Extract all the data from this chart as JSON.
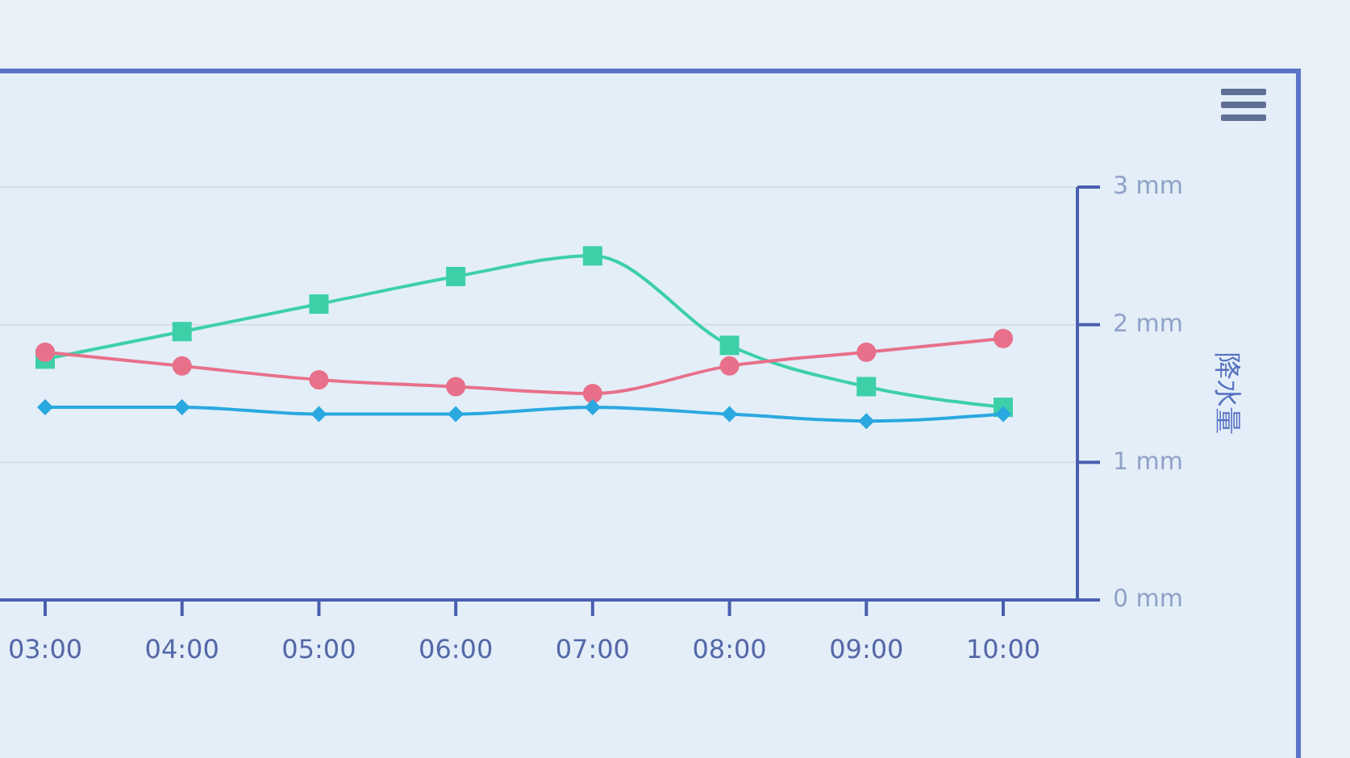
{
  "chart_data": {
    "type": "line",
    "categories": [
      "03:00",
      "04:00",
      "05:00",
      "06:00",
      "07:00",
      "08:00",
      "09:00",
      "10:00"
    ],
    "ylabel": "降水量",
    "ylim": [
      0,
      3
    ],
    "yticks": [
      {
        "value": 0,
        "label": "0 mm"
      },
      {
        "value": 1,
        "label": "1 mm"
      },
      {
        "value": 2,
        "label": "2 mm"
      },
      {
        "value": 3,
        "label": "3 mm"
      }
    ],
    "grid": "y",
    "series": [
      {
        "color": "#3dd0a8",
        "marker": "square",
        "values": [
          1.75,
          1.95,
          2.15,
          2.35,
          2.5,
          1.85,
          1.55,
          1.4
        ]
      },
      {
        "color": "#e8708a",
        "marker": "circle",
        "values": [
          1.8,
          1.7,
          1.6,
          1.55,
          1.5,
          1.7,
          1.8,
          1.9
        ]
      },
      {
        "color": "#2aa8e0",
        "marker": "diamond",
        "values": [
          1.4,
          1.4,
          1.35,
          1.35,
          1.4,
          1.35,
          1.3,
          1.35
        ]
      }
    ]
  }
}
